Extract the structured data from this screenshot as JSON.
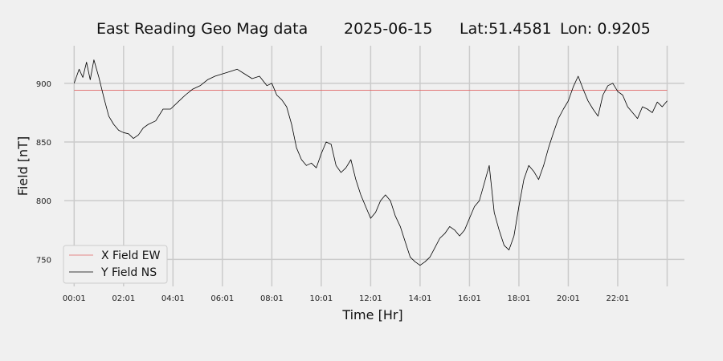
{
  "chart_data": {
    "type": "line",
    "title_parts": [
      "East Reading Geo Mag data",
      "2025-06-15",
      "Lat:51.4581",
      "Lon: 0.9205"
    ],
    "xlabel": "Time  [Hr]",
    "ylabel": "Field  [nT]",
    "xlim": [
      -0.4,
      24.7
    ],
    "ylim": [
      727,
      932
    ],
    "x_ticks": [
      0,
      2,
      4,
      6,
      8,
      10,
      12,
      14,
      16,
      18,
      20,
      22,
      24
    ],
    "x_tick_labels": [
      "00:01",
      "02:01",
      "04:01",
      "06:01",
      "08:01",
      "10:01",
      "12:01",
      "14:01",
      "16:01",
      "18:01",
      "20:01",
      "22:01",
      ""
    ],
    "y_ticks": [
      750,
      800,
      850,
      900
    ],
    "y_tick_labels": [
      "750",
      "800",
      "850",
      "900"
    ],
    "grid": true,
    "legend_position": "lower-left",
    "colors": {
      "x_series": "#e06666",
      "y_series": "#000000",
      "grid": "#cbcbcb",
      "background": "#f0f0f0"
    },
    "series": [
      {
        "name": "X Field EW",
        "x": [
          0,
          24
        ],
        "y": [
          894,
          894
        ]
      },
      {
        "name": "Y Field NS",
        "x": [
          0,
          0.2,
          0.35,
          0.5,
          0.65,
          0.8,
          1.0,
          1.2,
          1.4,
          1.6,
          1.8,
          2.0,
          2.2,
          2.4,
          2.6,
          2.8,
          3.0,
          3.3,
          3.6,
          3.9,
          4.2,
          4.5,
          4.8,
          5.1,
          5.4,
          5.7,
          6.0,
          6.3,
          6.6,
          6.9,
          7.2,
          7.5,
          7.8,
          8.0,
          8.2,
          8.4,
          8.6,
          8.8,
          9.0,
          9.2,
          9.4,
          9.6,
          9.8,
          10.0,
          10.2,
          10.4,
          10.6,
          10.8,
          11.0,
          11.2,
          11.4,
          11.6,
          11.8,
          12.0,
          12.2,
          12.4,
          12.6,
          12.8,
          13.0,
          13.2,
          13.4,
          13.6,
          13.8,
          14.0,
          14.2,
          14.4,
          14.6,
          14.8,
          15.0,
          15.2,
          15.4,
          15.6,
          15.8,
          16.0,
          16.2,
          16.4,
          16.6,
          16.8,
          17.0,
          17.2,
          17.4,
          17.6,
          17.8,
          18.0,
          18.2,
          18.4,
          18.6,
          18.8,
          19.0,
          19.2,
          19.4,
          19.6,
          19.8,
          20.0,
          20.2,
          20.4,
          20.6,
          20.8,
          21.0,
          21.2,
          21.4,
          21.6,
          21.8,
          22.0,
          22.2,
          22.4,
          22.6,
          22.8,
          23.0,
          23.2,
          23.4,
          23.6,
          23.8,
          24.0
        ],
        "y": [
          900,
          912,
          905,
          918,
          903,
          920,
          905,
          888,
          872,
          865,
          860,
          858,
          857,
          853,
          856,
          862,
          865,
          868,
          878,
          878,
          884,
          890,
          895,
          898,
          903,
          906,
          908,
          910,
          912,
          908,
          904,
          906,
          898,
          900,
          890,
          886,
          880,
          865,
          845,
          835,
          830,
          832,
          828,
          840,
          850,
          848,
          830,
          824,
          828,
          835,
          818,
          805,
          795,
          785,
          790,
          800,
          805,
          800,
          787,
          778,
          765,
          752,
          748,
          745,
          748,
          752,
          760,
          768,
          772,
          778,
          775,
          770,
          775,
          785,
          795,
          800,
          815,
          830,
          790,
          775,
          762,
          758,
          770,
          795,
          818,
          830,
          825,
          818,
          830,
          845,
          858,
          870,
          878,
          885,
          897,
          906,
          895,
          885,
          878,
          872,
          890,
          898,
          900,
          893,
          890,
          880,
          875,
          870,
          880,
          878,
          875,
          884,
          880,
          885
        ]
      }
    ]
  }
}
